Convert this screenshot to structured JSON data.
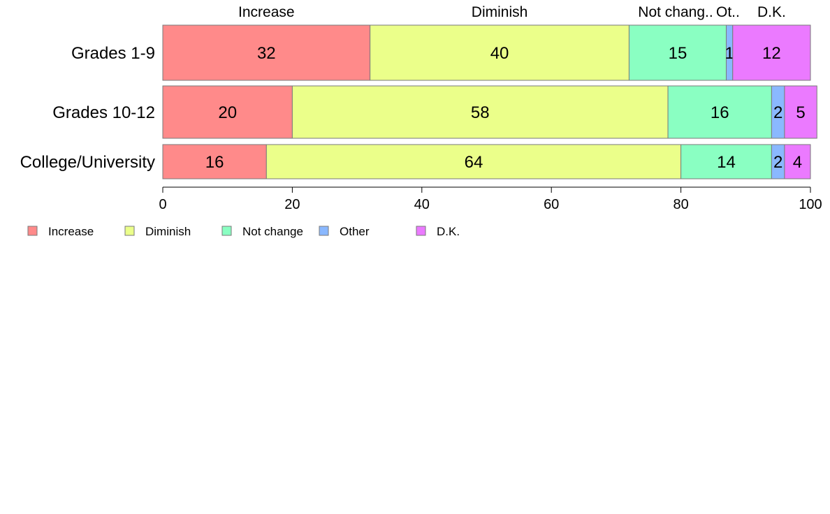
{
  "chart_data": {
    "type": "bar",
    "orientation": "horizontal",
    "stacked": true,
    "categories": [
      "Grades 1-9",
      "Grades 10-12",
      "College/University"
    ],
    "series": [
      {
        "name": "Increase",
        "color": "#ff8a8a",
        "values": [
          32,
          20,
          16
        ]
      },
      {
        "name": "Diminish",
        "color": "#ebff8a",
        "values": [
          40,
          58,
          64
        ]
      },
      {
        "name": "Not change",
        "color": "#8affc2",
        "values": [
          15,
          16,
          14
        ]
      },
      {
        "name": "Other",
        "color": "#8ab8ff",
        "values": [
          1,
          2,
          2
        ]
      },
      {
        "name": "D.K.",
        "color": "#eb7aff",
        "values": [
          12,
          5,
          4
        ]
      }
    ],
    "value_labels": [
      [
        "32",
        "20",
        "16"
      ],
      [
        "40",
        "58",
        "64"
      ],
      [
        "15",
        "16",
        "14"
      ],
      [
        "1",
        "2",
        "2"
      ],
      [
        "12",
        "5",
        "4"
      ]
    ],
    "top_labels": [
      "Increase",
      "Diminish",
      "Not chang..",
      "Ot..",
      "D.K."
    ],
    "xlim": [
      0,
      100
    ],
    "xticks": [
      0,
      20,
      40,
      60,
      80,
      100
    ],
    "xtick_labels": [
      "0",
      "20",
      "40",
      "60",
      "80",
      "100"
    ],
    "grid": false,
    "legend_position": "bottom-left"
  }
}
